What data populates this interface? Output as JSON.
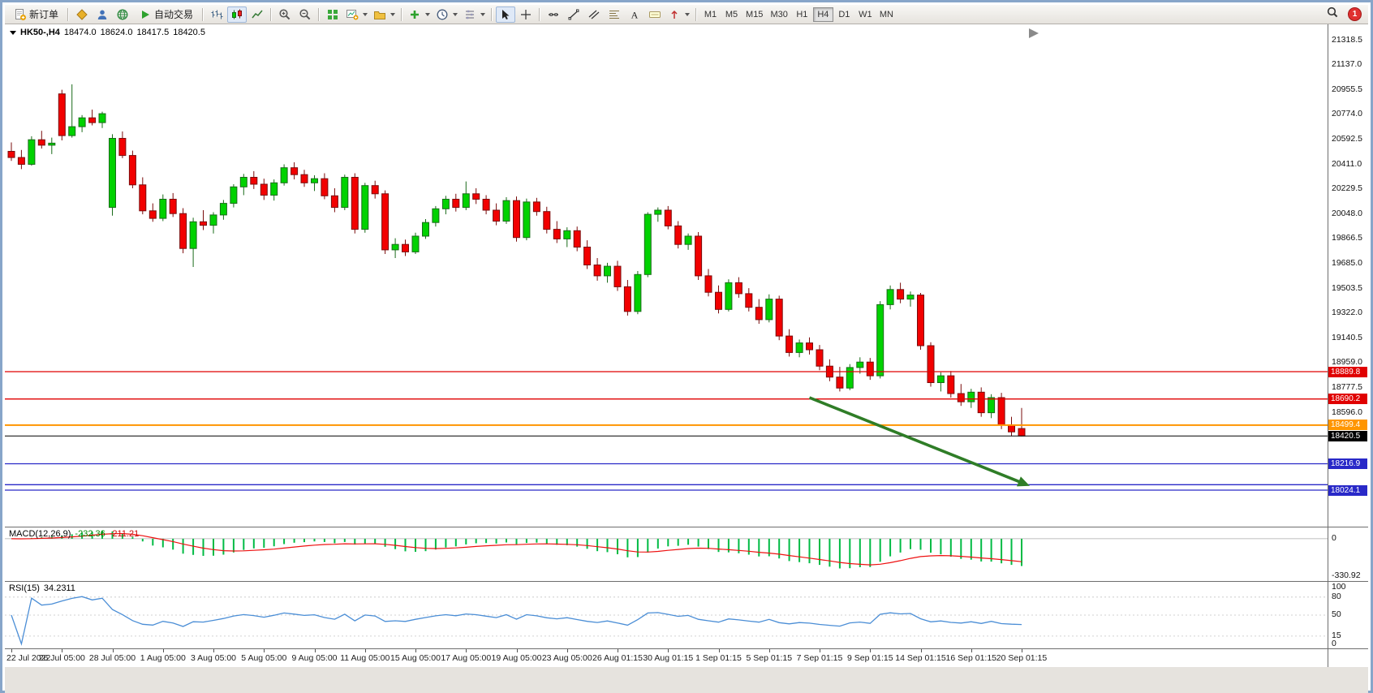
{
  "toolbar": {
    "groups": [
      {
        "items": [
          {
            "name": "new-order-button",
            "icon": "neworder",
            "label": "新订单"
          }
        ]
      },
      {
        "items": [
          {
            "name": "metaeditor-button",
            "icon": "gold"
          },
          {
            "name": "profile-button",
            "icon": "person"
          },
          {
            "name": "webtrade-button",
            "icon": "globe"
          },
          {
            "name": "autotrading-button",
            "icon": "play",
            "label": "自动交易"
          }
        ]
      },
      {
        "items": [
          {
            "name": "bar-chart-button",
            "icon": "bars"
          },
          {
            "name": "candlestick-button",
            "icon": "candles",
            "active": true
          },
          {
            "name": "line-chart-button",
            "icon": "linechart"
          }
        ]
      },
      {
        "items": [
          {
            "name": "zoom-in-button",
            "icon": "zoomin"
          },
          {
            "name": "zoom-out-button",
            "icon": "zoomout"
          }
        ]
      },
      {
        "items": [
          {
            "name": "tile-windows-button",
            "icon": "tile"
          },
          {
            "name": "new-chart-button",
            "icon": "newchart",
            "dropdown": true
          },
          {
            "name": "profiles-button",
            "icon": "folder",
            "dropdown": true
          }
        ]
      },
      {
        "items": [
          {
            "name": "indicators-button",
            "icon": "indicators",
            "dropdown": true
          },
          {
            "name": "periods-button",
            "icon": "clock",
            "dropdown": true
          },
          {
            "name": "templates-button",
            "icon": "template",
            "dropdown": true
          }
        ]
      },
      {
        "items": [
          {
            "name": "cursor-button",
            "icon": "cursor",
            "active": true
          },
          {
            "name": "crosshair-button",
            "icon": "crosshair"
          }
        ]
      },
      {
        "items": [
          {
            "name": "horizontal-line-button",
            "icon": "hline"
          },
          {
            "name": "trendline-button",
            "icon": "trend"
          },
          {
            "name": "channel-button",
            "icon": "channel"
          },
          {
            "name": "fibonacci-button",
            "icon": "fib"
          },
          {
            "name": "text-button",
            "icon": "textA"
          },
          {
            "name": "label-button",
            "icon": "label"
          },
          {
            "name": "arrows-button",
            "icon": "arrowset",
            "dropdown": true
          }
        ]
      }
    ],
    "timeframes": {
      "items": [
        "M1",
        "M5",
        "M15",
        "M30",
        "H1",
        "H4",
        "D1",
        "W1",
        "MN"
      ],
      "active": "H4"
    },
    "right": {
      "badge": "1"
    }
  },
  "chart": {
    "header": {
      "symbol": "HK50-,H4",
      "open": "18474.0",
      "high": "18624.0",
      "low": "18417.5",
      "close": "18420.5"
    },
    "y_axis": {
      "labels": [
        "21318.5",
        "21137.0",
        "20955.5",
        "20774.0",
        "20592.5",
        "20411.0",
        "20229.5",
        "20048.0",
        "19866.5",
        "19685.0",
        "19503.5",
        "19322.0",
        "19140.5",
        "18959.0",
        "18777.5",
        "18596.0"
      ]
    },
    "x_axis": {
      "labels": [
        {
          "text": "22 Jul 2022",
          "bar": 0
        },
        {
          "text": "26 Jul 05:00",
          "bar": 5
        },
        {
          "text": "28 Jul 05:00",
          "bar": 10
        },
        {
          "text": "1 Aug 05:00",
          "bar": 15
        },
        {
          "text": "3 Aug 05:00",
          "bar": 20
        },
        {
          "text": "5 Aug 05:00",
          "bar": 25
        },
        {
          "text": "9 Aug 05:00",
          "bar": 30
        },
        {
          "text": "11 Aug 05:00",
          "bar": 35
        },
        {
          "text": "15 Aug 05:00",
          "bar": 40
        },
        {
          "text": "17 Aug 05:00",
          "bar": 45
        },
        {
          "text": "19 Aug 05:00",
          "bar": 50
        },
        {
          "text": "23 Aug 05:00",
          "bar": 55
        },
        {
          "text": "26 Aug 01:15",
          "bar": 60
        },
        {
          "text": "30 Aug 01:15",
          "bar": 65
        },
        {
          "text": "1 Sep 01:15",
          "bar": 70
        },
        {
          "text": "5 Sep 01:15",
          "bar": 75
        },
        {
          "text": "7 Sep 01:15",
          "bar": 80
        },
        {
          "text": "9 Sep 01:15",
          "bar": 85
        },
        {
          "text": "14 Sep 01:15",
          "bar": 90
        },
        {
          "text": "16 Sep 01:15",
          "bar": 95
        },
        {
          "text": "20 Sep 01:15",
          "bar": 100
        }
      ]
    },
    "price_lines": [
      {
        "price": 18889.8,
        "label": "18889.8",
        "color": "#e00000",
        "width": 1.3
      },
      {
        "price": 18690.2,
        "label": "18690.2",
        "color": "#e00000",
        "width": 1.3
      },
      {
        "price": 18499.4,
        "label": "18499.4",
        "color": "#ff9500",
        "width": 2
      },
      {
        "price": 18216.9,
        "label": "18216.9",
        "color": "#2929c8",
        "width": 1.3
      },
      {
        "price": 18064.0,
        "label": "",
        "color": "#2929c8",
        "width": 1.3
      },
      {
        "price": 18024.1,
        "label": "18024.1",
        "color": "#2929c8",
        "width": 1.3
      }
    ],
    "current_price": {
      "price": 18420.5,
      "label": "18420.5",
      "color": "#000000"
    },
    "arrow": {
      "from_bar": 79,
      "from_price": 18700,
      "to_bar": 100.8,
      "to_price": 18055,
      "color": "#2f7d27"
    }
  },
  "macd_panel": {
    "name": "MACD(12,26,9)",
    "value1": "-232.36",
    "value2": "-211.21",
    "axis": [
      "0",
      "-330.92"
    ]
  },
  "rsi_panel": {
    "name": "RSI(15)",
    "value": "34.2311",
    "axis": [
      "100",
      "80",
      "50",
      "15",
      "0"
    ],
    "levels": [
      80,
      50,
      15
    ]
  },
  "chart_data": {
    "type": "candlestick",
    "symbol": "HK50-",
    "timeframe": "H4",
    "colors": {
      "up": "#00d200",
      "up_border": "#1a6b1a",
      "down": "#f20000",
      "down_border": "#7a0c0c",
      "macd_hist": "#00bb44",
      "macd_signal": "#ee1111",
      "rsi_line": "#4b8ed6"
    },
    "candles": [
      [
        20500,
        20565,
        20430,
        20455
      ],
      [
        20455,
        20510,
        20370,
        20405
      ],
      [
        20405,
        20610,
        20395,
        20585
      ],
      [
        20585,
        20650,
        20520,
        20545
      ],
      [
        20545,
        20600,
        20480,
        20560
      ],
      [
        20920,
        20950,
        20580,
        20615
      ],
      [
        20615,
        20990,
        20600,
        20680
      ],
      [
        20680,
        20765,
        20640,
        20745
      ],
      [
        20745,
        20805,
        20690,
        20710
      ],
      [
        20710,
        20790,
        20670,
        20775
      ],
      [
        20090,
        20625,
        20030,
        20595
      ],
      [
        20595,
        20645,
        20450,
        20470
      ],
      [
        20470,
        20505,
        20230,
        20255
      ],
      [
        20255,
        20310,
        20040,
        20065
      ],
      [
        20065,
        20120,
        19985,
        20010
      ],
      [
        20010,
        20185,
        19990,
        20150
      ],
      [
        20150,
        20195,
        20020,
        20045
      ],
      [
        20045,
        20085,
        19755,
        19790
      ],
      [
        19790,
        20015,
        19655,
        19985
      ],
      [
        19985,
        20070,
        19925,
        19960
      ],
      [
        19960,
        20055,
        19900,
        20035
      ],
      [
        20035,
        20145,
        20000,
        20120
      ],
      [
        20120,
        20260,
        20090,
        20240
      ],
      [
        20240,
        20335,
        20180,
        20310
      ],
      [
        20310,
        20355,
        20225,
        20260
      ],
      [
        20260,
        20300,
        20145,
        20180
      ],
      [
        20180,
        20295,
        20140,
        20270
      ],
      [
        20270,
        20405,
        20250,
        20380
      ],
      [
        20380,
        20420,
        20295,
        20330
      ],
      [
        20330,
        20365,
        20240,
        20270
      ],
      [
        20270,
        20325,
        20210,
        20300
      ],
      [
        20300,
        20340,
        20150,
        20175
      ],
      [
        20175,
        20230,
        20055,
        20090
      ],
      [
        20090,
        20330,
        20070,
        20310
      ],
      [
        20310,
        20340,
        19900,
        19930
      ],
      [
        19930,
        20270,
        19905,
        20250
      ],
      [
        20250,
        20285,
        20155,
        20190
      ],
      [
        20190,
        20215,
        19750,
        19780
      ],
      [
        19780,
        19865,
        19720,
        19820
      ],
      [
        19820,
        19855,
        19735,
        19765
      ],
      [
        19765,
        19905,
        19750,
        19880
      ],
      [
        19880,
        20005,
        19860,
        19980
      ],
      [
        19980,
        20100,
        19950,
        20080
      ],
      [
        20080,
        20175,
        20040,
        20150
      ],
      [
        20150,
        20190,
        20060,
        20090
      ],
      [
        20090,
        20280,
        20070,
        20190
      ],
      [
        20190,
        20230,
        20115,
        20150
      ],
      [
        20150,
        20180,
        20040,
        20070
      ],
      [
        20070,
        20120,
        19960,
        19990
      ],
      [
        19990,
        20165,
        19970,
        20140
      ],
      [
        20140,
        20170,
        19840,
        19870
      ],
      [
        19870,
        20155,
        19850,
        20130
      ],
      [
        20130,
        20160,
        20030,
        20060
      ],
      [
        20060,
        20095,
        19900,
        19930
      ],
      [
        19930,
        19990,
        19830,
        19860
      ],
      [
        19860,
        19945,
        19800,
        19920
      ],
      [
        19920,
        19950,
        19770,
        19800
      ],
      [
        19800,
        19850,
        19640,
        19670
      ],
      [
        19670,
        19720,
        19555,
        19590
      ],
      [
        19590,
        19685,
        19540,
        19660
      ],
      [
        19660,
        19700,
        19480,
        19510
      ],
      [
        19510,
        19560,
        19300,
        19330
      ],
      [
        19330,
        19625,
        19310,
        19600
      ],
      [
        19600,
        20055,
        19580,
        20040
      ],
      [
        20040,
        20090,
        19985,
        20070
      ],
      [
        20070,
        20100,
        19930,
        19955
      ],
      [
        19955,
        19990,
        19790,
        19820
      ],
      [
        19820,
        19900,
        19780,
        19880
      ],
      [
        19880,
        19910,
        19560,
        19590
      ],
      [
        19590,
        19640,
        19440,
        19470
      ],
      [
        19470,
        19520,
        19315,
        19345
      ],
      [
        19345,
        19565,
        19330,
        19540
      ],
      [
        19540,
        19580,
        19430,
        19460
      ],
      [
        19460,
        19500,
        19330,
        19360
      ],
      [
        19360,
        19420,
        19240,
        19270
      ],
      [
        19270,
        19455,
        19250,
        19420
      ],
      [
        19420,
        19445,
        19120,
        19150
      ],
      [
        19150,
        19200,
        19000,
        19030
      ],
      [
        19030,
        19125,
        18995,
        19100
      ],
      [
        19100,
        19140,
        19015,
        19050
      ],
      [
        19050,
        19085,
        18900,
        18930
      ],
      [
        18930,
        18980,
        18820,
        18850
      ],
      [
        18850,
        18925,
        18745,
        18770
      ],
      [
        18770,
        18945,
        18755,
        18920
      ],
      [
        18920,
        18995,
        18875,
        18960
      ],
      [
        18960,
        18990,
        18830,
        18860
      ],
      [
        18860,
        19405,
        18840,
        19380
      ],
      [
        19380,
        19520,
        19345,
        19490
      ],
      [
        19490,
        19540,
        19390,
        19420
      ],
      [
        19420,
        19475,
        19365,
        19450
      ],
      [
        19450,
        19465,
        19050,
        19080
      ],
      [
        19080,
        19105,
        18780,
        18810
      ],
      [
        18810,
        18885,
        18745,
        18860
      ],
      [
        18860,
        18895,
        18700,
        18730
      ],
      [
        18730,
        18800,
        18640,
        18670
      ],
      [
        18670,
        18765,
        18625,
        18740
      ],
      [
        18740,
        18775,
        18560,
        18590
      ],
      [
        18590,
        18725,
        18550,
        18700
      ],
      [
        18700,
        18735,
        18470,
        18500
      ],
      [
        18500,
        18560,
        18420,
        18450
      ],
      [
        18474,
        18624,
        18417.5,
        18420.5
      ]
    ],
    "indicators": [
      {
        "type": "macd",
        "params": [
          12,
          26,
          9
        ],
        "last_values": [
          -232.36,
          -211.21
        ]
      },
      {
        "type": "rsi",
        "params": [
          15
        ],
        "last_value": 34.2311
      }
    ]
  }
}
